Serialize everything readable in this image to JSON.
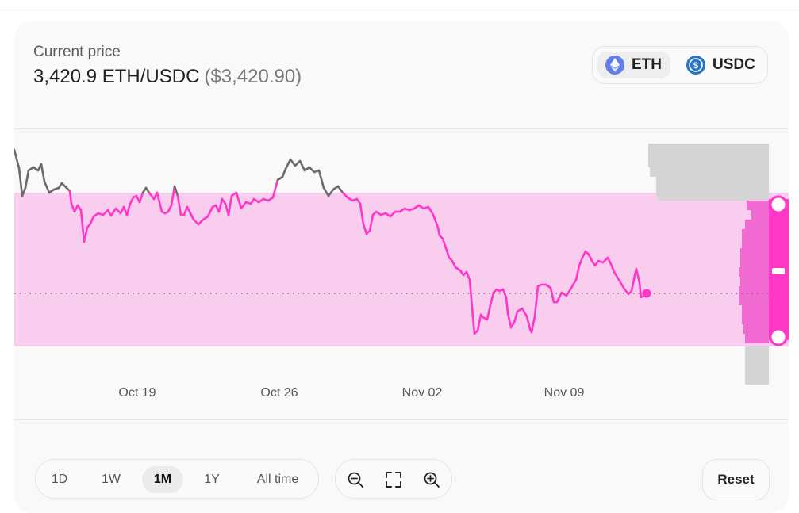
{
  "header": {
    "current_price_label": "Current price",
    "price": "3,420.9 ETH/USDC",
    "price_usd": "($3,420.90)"
  },
  "token_toggle": {
    "tokens": [
      {
        "symbol": "ETH",
        "icon": "ethereum-icon",
        "color": "#627eea",
        "selected": true
      },
      {
        "symbol": "USDC",
        "icon": "usdc-icon",
        "color": "#2775ca",
        "selected": false
      }
    ]
  },
  "chart_data": {
    "type": "line",
    "x_ticks": [
      "Oct 19",
      "Oct 26",
      "Nov 02",
      "Nov 09"
    ],
    "range_band_color": "#f8cdee",
    "line_color_in_range": "#ff37c7",
    "line_color_out_of_range": "#6b6b6b",
    "current_price_marker": "dotted",
    "liquidity_histogram": true
  },
  "time_ranges": {
    "options": [
      "1D",
      "1W",
      "1M",
      "1Y",
      "All time"
    ],
    "selected": "1M"
  },
  "zoom_controls": {
    "icons": [
      "zoom-out-icon",
      "fit-screen-icon",
      "zoom-in-icon"
    ]
  },
  "reset_label": "Reset"
}
